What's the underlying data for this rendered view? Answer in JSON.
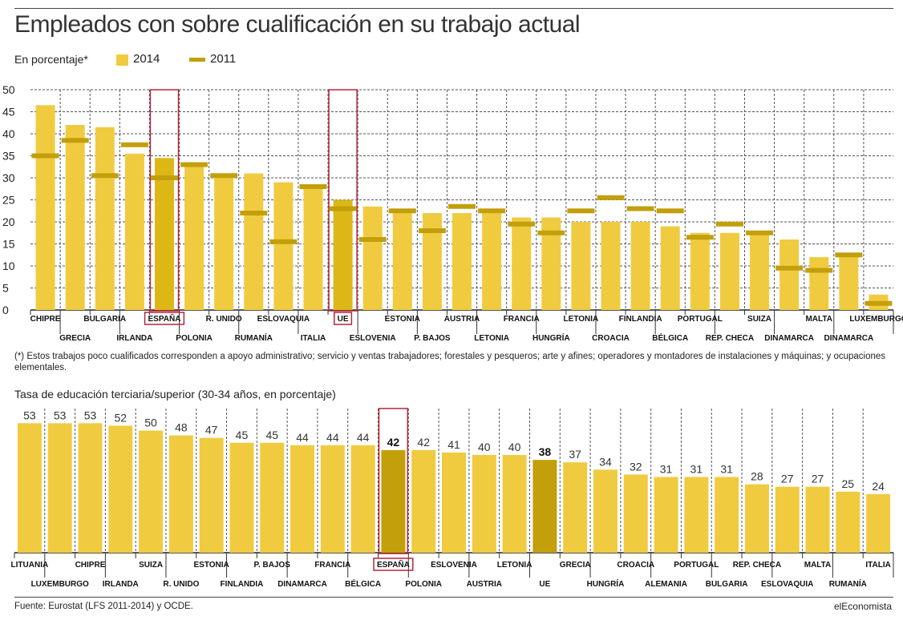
{
  "title": "Empleados con sobre cualificación en su trabajo actual",
  "legend": {
    "unit": "En porcentaje*",
    "items": [
      {
        "label": "2014",
        "color": "#f0cb40"
      },
      {
        "label": "2011",
        "color": "#c29f0b"
      }
    ]
  },
  "footnote": "(*) Estos trabajos poco cualificados corresponden a apoyo administrativo; servicio y ventas trabajadores; forestales y pesqueros; arte y afines; operadores y montadores de instalaciones y máquinas; y ocupaciones elementales.",
  "source": "Fuente: Eurostat (LFS 2011-2014) y OCDE.",
  "brand": "elEconomista",
  "colors": {
    "bar": "#f0cb40",
    "highlight_bar_2014": "#dcb716",
    "marker_2011": "#c29f0b",
    "highlight_bar_tertiary": "#c29f0b",
    "highlight_box": "#b5263a",
    "grid": "#555555"
  },
  "chart_data": [
    {
      "type": "bar",
      "title": "Empleados con sobre cualificación en su trabajo actual",
      "ylabel": "En porcentaje*",
      "ylim": [
        0,
        50
      ],
      "yticks": [
        0,
        5,
        10,
        15,
        20,
        25,
        30,
        35,
        40,
        45,
        50
      ],
      "grid": true,
      "legend_position": "top-left",
      "categories": [
        "CHIPRE",
        "GRECIA",
        "BULGARIA",
        "IRLANDA",
        "ESPAÑA",
        "POLONIA",
        "R. UNIDO",
        "RUMANÍA",
        "ESLOVAQUIA",
        "ITALIA",
        "UE",
        "ESLOVENIA",
        "ESTONIA",
        "P. BAJOS",
        "AUSTRIA",
        "LETONIA",
        "FRANCIA",
        "HUNGRÍA",
        "LETONIA",
        "CROACIA",
        "FINLANDIA",
        "BÉLGICA",
        "PORTUGAL",
        "REP. CHECA",
        "SUIZA",
        "DINAMARCA",
        "MALTA",
        "DINAMARCA",
        "LUXEMBURGO"
      ],
      "highlight": [
        "ESPAÑA",
        "UE"
      ],
      "series": [
        {
          "name": "2014",
          "values": [
            46.5,
            42,
            41.5,
            35.5,
            34.5,
            33.5,
            30.5,
            31,
            29,
            27.5,
            25,
            23.5,
            23,
            22,
            22,
            22.5,
            21,
            21,
            20,
            20,
            20,
            19,
            17.5,
            17.5,
            17,
            16,
            12,
            12,
            3.5
          ]
        },
        {
          "name": "2011",
          "values": [
            35,
            38.5,
            30.5,
            37.5,
            30,
            33,
            30.5,
            22,
            15.5,
            28,
            23,
            16,
            22.5,
            18,
            23.5,
            22.5,
            19.5,
            17.5,
            22.5,
            25.5,
            23,
            22.5,
            16.5,
            19.5,
            17.5,
            9.5,
            9,
            12.5,
            1.5
          ]
        }
      ]
    },
    {
      "type": "bar",
      "title": "Tasa de educación terciaria/superior (30-34 años, en porcentaje)",
      "grid": true,
      "categories": [
        "LITUANIA",
        "LUXEMBURGO",
        "CHIPRE",
        "IRLANDA",
        "SUIZA",
        "R. UNIDO",
        "ESTONIA",
        "FINLANDIA",
        "P. BAJOS",
        "DINAMARCA",
        "FRANCIA",
        "BÉLGICA",
        "ESPAÑA",
        "POLONIA",
        "ESLOVENIA",
        "AUSTRIA",
        "LETONIA",
        "UE",
        "GRECIA",
        "HUNGRÍA",
        "CROACIA",
        "ALEMANIA",
        "PORTUGAL",
        "BULGARIA",
        "REP. CHECA",
        "ESLOVAQUIA",
        "MALTA",
        "RUMANÍA",
        "ITALIA"
      ],
      "values": [
        53,
        53,
        53,
        52,
        50,
        48,
        47,
        45,
        45,
        44,
        44,
        44,
        42,
        42,
        41,
        40,
        40,
        38,
        37,
        34,
        32,
        31,
        31,
        31,
        28,
        27,
        27,
        25,
        24
      ],
      "highlight": [
        "ESPAÑA",
        "UE"
      ],
      "highlight_box": [
        "ESPAÑA"
      ]
    }
  ]
}
